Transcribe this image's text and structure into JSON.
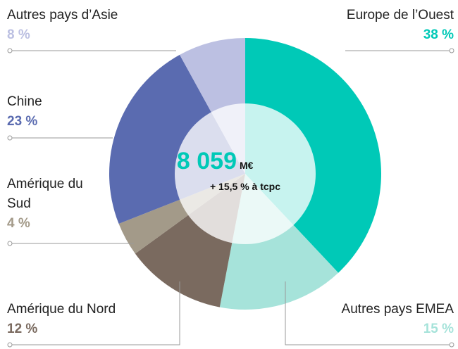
{
  "chart_data": {
    "type": "donut",
    "categories": [
      "Europe de l’Ouest",
      "Autres pays EMEA",
      "Amérique du Nord",
      "Amérique du Sud",
      "Chine",
      "Autres pays d’Asie"
    ],
    "values": [
      38,
      15,
      12,
      4,
      23,
      8
    ],
    "value_labels": [
      "38 %",
      "15 %",
      "12 %",
      "4 %",
      "23 %",
      "8 %"
    ],
    "colors": [
      "#00c9b7",
      "#a6e3da",
      "#7a6a5f",
      "#a39a89",
      "#5a6bb0",
      "#bcc0e2"
    ],
    "center_value": "8 059",
    "center_unit": "M€",
    "center_note": "+ 15,5 % à tcpc"
  }
}
